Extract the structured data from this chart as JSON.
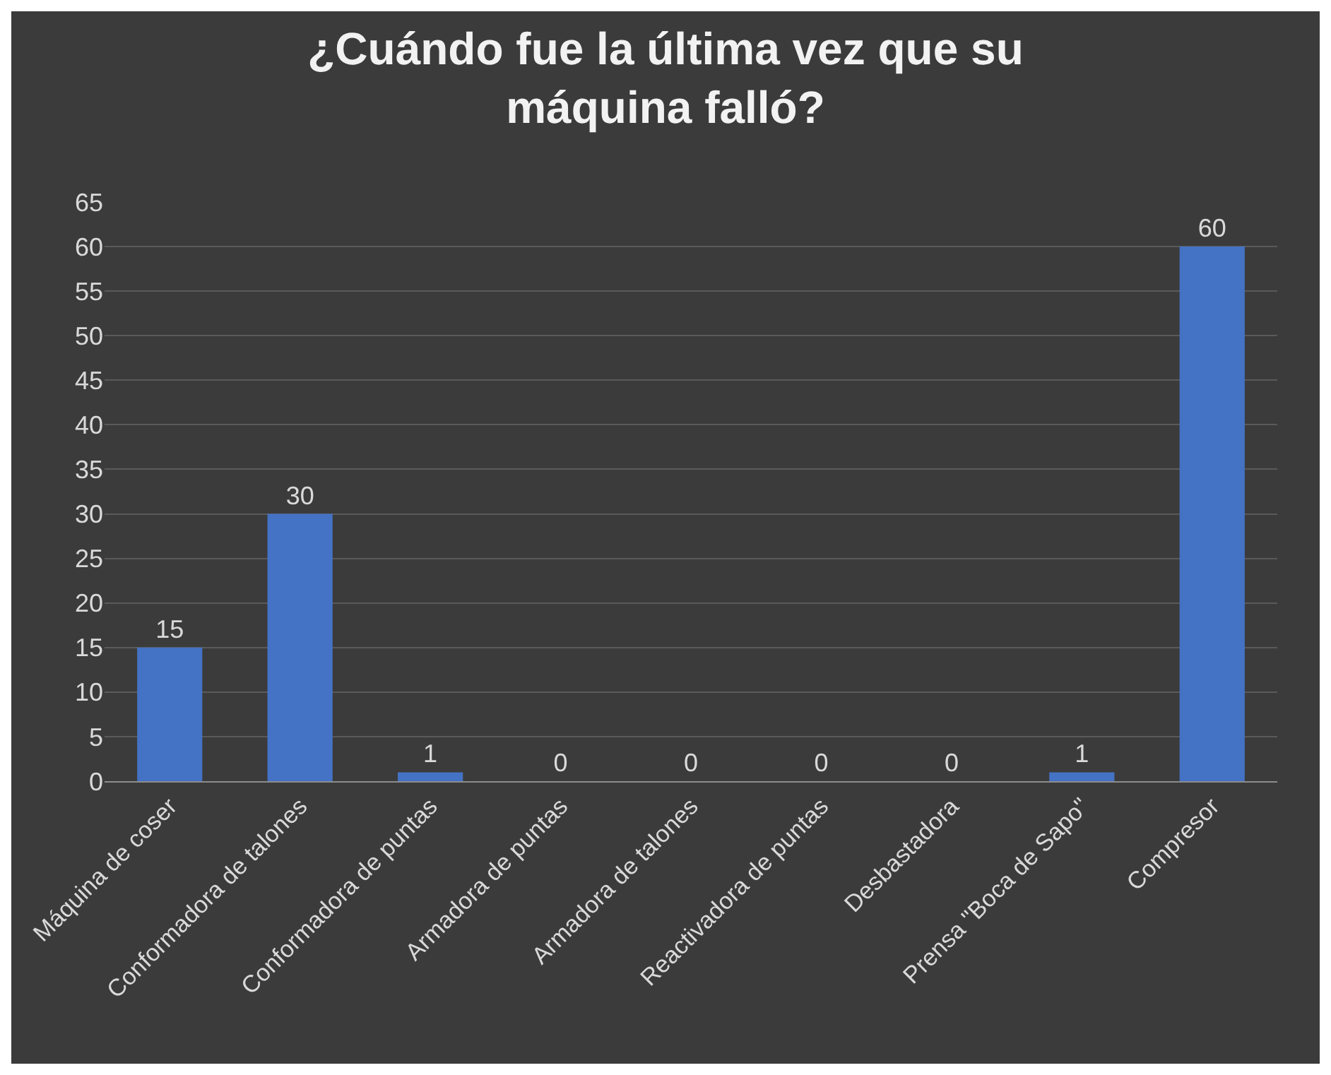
{
  "chart_data": {
    "type": "bar",
    "title": "¿Cuándo fue la última vez que su máquina falló?",
    "categories": [
      "Máquina de coser",
      "Conformadora de talones",
      "Conformadora de puntas",
      "Armadora de puntas",
      "Armadora de talones",
      "Reactivadora de puntas",
      "Desbastadora",
      "Prensa \"Boca de Sapo\"",
      "Compresor"
    ],
    "values": [
      15,
      30,
      1,
      0,
      0,
      0,
      0,
      1,
      60
    ],
    "color": "#4472c4",
    "ylim": [
      0,
      65
    ],
    "yticks": [
      0,
      5,
      10,
      15,
      20,
      25,
      30,
      35,
      40,
      45,
      50,
      55,
      60,
      65
    ],
    "grid": "y",
    "data_labels": true
  }
}
